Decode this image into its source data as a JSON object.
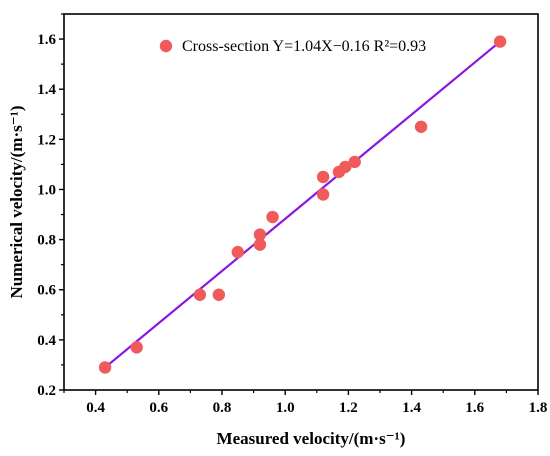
{
  "chart_data": {
    "type": "scatter",
    "xlabel": "Measured velocity/(m·s⁻¹)",
    "ylabel": "Numerical velocity/(m·s⁻¹)",
    "xlim": [
      0.3,
      1.8
    ],
    "ylim": [
      0.2,
      1.7
    ],
    "xticks": [
      "0.4",
      "0.6",
      "0.8",
      "1.0",
      "1.2",
      "1.4",
      "1.6",
      "1.8"
    ],
    "yticks": [
      "0.2",
      "0.4",
      "0.6",
      "0.8",
      "1.0",
      "1.2",
      "1.4",
      "1.6"
    ],
    "legend": {
      "position": "top-left",
      "label": "Cross-section Y=1.04X−0.16 R²=0.93"
    },
    "series": [
      {
        "name": "Cross-section",
        "color": "#f05a5a",
        "points": [
          {
            "x": 0.43,
            "y": 0.29
          },
          {
            "x": 0.53,
            "y": 0.37
          },
          {
            "x": 0.73,
            "y": 0.58
          },
          {
            "x": 0.79,
            "y": 0.58
          },
          {
            "x": 0.85,
            "y": 0.75
          },
          {
            "x": 0.92,
            "y": 0.82
          },
          {
            "x": 0.92,
            "y": 0.78
          },
          {
            "x": 0.96,
            "y": 0.89
          },
          {
            "x": 1.12,
            "y": 0.98
          },
          {
            "x": 1.12,
            "y": 1.05
          },
          {
            "x": 1.17,
            "y": 1.07
          },
          {
            "x": 1.19,
            "y": 1.09
          },
          {
            "x": 1.22,
            "y": 1.11
          },
          {
            "x": 1.43,
            "y": 1.25
          },
          {
            "x": 1.68,
            "y": 1.59
          }
        ]
      }
    ],
    "fit_line": {
      "color": "#8a16e6",
      "x": [
        0.43,
        1.68
      ],
      "y": [
        0.29,
        1.59
      ]
    },
    "grid": false
  }
}
